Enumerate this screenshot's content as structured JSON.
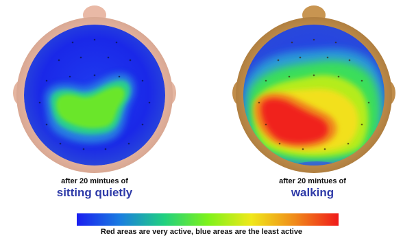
{
  "panels": [
    {
      "caption_prefix": "after 20 mintues of",
      "activity": "sitting quietly",
      "skin_color": "#e9b9a6",
      "activity_level": "low"
    },
    {
      "caption_prefix": "after 20 mintues of",
      "activity": "walking",
      "skin_color": "#c89551",
      "activity_level": "high"
    }
  ],
  "scale": {
    "note": "Red areas are very active, blue areas are the least active",
    "gradient": [
      "#1a1ef0",
      "#1a7ee0",
      "#20d080",
      "#7df21a",
      "#f0e81a",
      "#f08a1a",
      "#f01a1a"
    ]
  },
  "colors": {
    "accent": "#2e3aa8",
    "text": "#111111"
  }
}
